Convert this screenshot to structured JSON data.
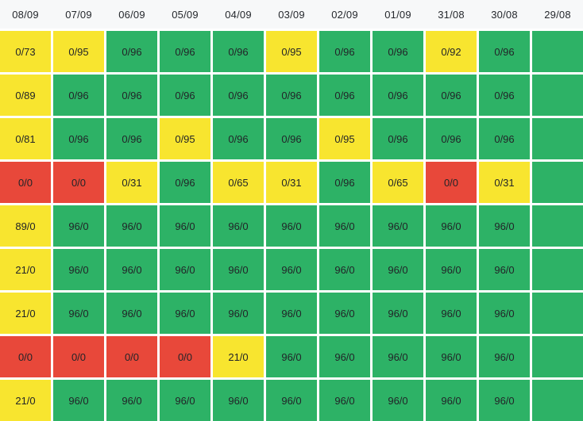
{
  "colors": {
    "green": "#2db266",
    "yellow": "#f8e52f",
    "red": "#e8483a",
    "header_bg": "#f7f8f9",
    "header_text": "#25282d",
    "cell_text": "#222428",
    "gap": "#ffffff"
  },
  "chart_data": {
    "type": "heatmap",
    "columns": [
      "08/09",
      "07/09",
      "06/09",
      "05/09",
      "04/09",
      "03/09",
      "02/09",
      "01/09",
      "31/08",
      "30/08",
      "29/08"
    ],
    "legend": null,
    "rows": [
      {
        "cells": [
          {
            "v": "0/73",
            "s": "yellow"
          },
          {
            "v": "0/95",
            "s": "yellow"
          },
          {
            "v": "0/96",
            "s": "green"
          },
          {
            "v": "0/96",
            "s": "green"
          },
          {
            "v": "0/96",
            "s": "green"
          },
          {
            "v": "0/95",
            "s": "yellow"
          },
          {
            "v": "0/96",
            "s": "green"
          },
          {
            "v": "0/96",
            "s": "green"
          },
          {
            "v": "0/92",
            "s": "yellow"
          },
          {
            "v": "0/96",
            "s": "green"
          },
          {
            "v": "",
            "s": "green"
          }
        ]
      },
      {
        "cells": [
          {
            "v": "0/89",
            "s": "yellow"
          },
          {
            "v": "0/96",
            "s": "green"
          },
          {
            "v": "0/96",
            "s": "green"
          },
          {
            "v": "0/96",
            "s": "green"
          },
          {
            "v": "0/96",
            "s": "green"
          },
          {
            "v": "0/96",
            "s": "green"
          },
          {
            "v": "0/96",
            "s": "green"
          },
          {
            "v": "0/96",
            "s": "green"
          },
          {
            "v": "0/96",
            "s": "green"
          },
          {
            "v": "0/96",
            "s": "green"
          },
          {
            "v": "",
            "s": "green"
          }
        ]
      },
      {
        "cells": [
          {
            "v": "0/81",
            "s": "yellow"
          },
          {
            "v": "0/96",
            "s": "green"
          },
          {
            "v": "0/96",
            "s": "green"
          },
          {
            "v": "0/95",
            "s": "yellow"
          },
          {
            "v": "0/96",
            "s": "green"
          },
          {
            "v": "0/96",
            "s": "green"
          },
          {
            "v": "0/95",
            "s": "yellow"
          },
          {
            "v": "0/96",
            "s": "green"
          },
          {
            "v": "0/96",
            "s": "green"
          },
          {
            "v": "0/96",
            "s": "green"
          },
          {
            "v": "",
            "s": "green"
          }
        ]
      },
      {
        "cells": [
          {
            "v": "0/0",
            "s": "red"
          },
          {
            "v": "0/0",
            "s": "red"
          },
          {
            "v": "0/31",
            "s": "yellow"
          },
          {
            "v": "0/96",
            "s": "green"
          },
          {
            "v": "0/65",
            "s": "yellow"
          },
          {
            "v": "0/31",
            "s": "yellow"
          },
          {
            "v": "0/96",
            "s": "green"
          },
          {
            "v": "0/65",
            "s": "yellow"
          },
          {
            "v": "0/0",
            "s": "red"
          },
          {
            "v": "0/31",
            "s": "yellow"
          },
          {
            "v": "",
            "s": "green"
          }
        ]
      },
      {
        "cells": [
          {
            "v": "89/0",
            "s": "yellow"
          },
          {
            "v": "96/0",
            "s": "green"
          },
          {
            "v": "96/0",
            "s": "green"
          },
          {
            "v": "96/0",
            "s": "green"
          },
          {
            "v": "96/0",
            "s": "green"
          },
          {
            "v": "96/0",
            "s": "green"
          },
          {
            "v": "96/0",
            "s": "green"
          },
          {
            "v": "96/0",
            "s": "green"
          },
          {
            "v": "96/0",
            "s": "green"
          },
          {
            "v": "96/0",
            "s": "green"
          },
          {
            "v": "",
            "s": "green"
          }
        ]
      },
      {
        "cells": [
          {
            "v": "21/0",
            "s": "yellow"
          },
          {
            "v": "96/0",
            "s": "green"
          },
          {
            "v": "96/0",
            "s": "green"
          },
          {
            "v": "96/0",
            "s": "green"
          },
          {
            "v": "96/0",
            "s": "green"
          },
          {
            "v": "96/0",
            "s": "green"
          },
          {
            "v": "96/0",
            "s": "green"
          },
          {
            "v": "96/0",
            "s": "green"
          },
          {
            "v": "96/0",
            "s": "green"
          },
          {
            "v": "96/0",
            "s": "green"
          },
          {
            "v": "",
            "s": "green"
          }
        ]
      },
      {
        "cells": [
          {
            "v": "21/0",
            "s": "yellow"
          },
          {
            "v": "96/0",
            "s": "green"
          },
          {
            "v": "96/0",
            "s": "green"
          },
          {
            "v": "96/0",
            "s": "green"
          },
          {
            "v": "96/0",
            "s": "green"
          },
          {
            "v": "96/0",
            "s": "green"
          },
          {
            "v": "96/0",
            "s": "green"
          },
          {
            "v": "96/0",
            "s": "green"
          },
          {
            "v": "96/0",
            "s": "green"
          },
          {
            "v": "96/0",
            "s": "green"
          },
          {
            "v": "",
            "s": "green"
          }
        ]
      },
      {
        "cells": [
          {
            "v": "0/0",
            "s": "red"
          },
          {
            "v": "0/0",
            "s": "red"
          },
          {
            "v": "0/0",
            "s": "red"
          },
          {
            "v": "0/0",
            "s": "red"
          },
          {
            "v": "21/0",
            "s": "yellow"
          },
          {
            "v": "96/0",
            "s": "green"
          },
          {
            "v": "96/0",
            "s": "green"
          },
          {
            "v": "96/0",
            "s": "green"
          },
          {
            "v": "96/0",
            "s": "green"
          },
          {
            "v": "96/0",
            "s": "green"
          },
          {
            "v": "",
            "s": "green"
          }
        ]
      },
      {
        "cells": [
          {
            "v": "21/0",
            "s": "yellow"
          },
          {
            "v": "96/0",
            "s": "green"
          },
          {
            "v": "96/0",
            "s": "green"
          },
          {
            "v": "96/0",
            "s": "green"
          },
          {
            "v": "96/0",
            "s": "green"
          },
          {
            "v": "96/0",
            "s": "green"
          },
          {
            "v": "96/0",
            "s": "green"
          },
          {
            "v": "96/0",
            "s": "green"
          },
          {
            "v": "96/0",
            "s": "green"
          },
          {
            "v": "96/0",
            "s": "green"
          },
          {
            "v": "",
            "s": "green"
          }
        ]
      }
    ]
  }
}
